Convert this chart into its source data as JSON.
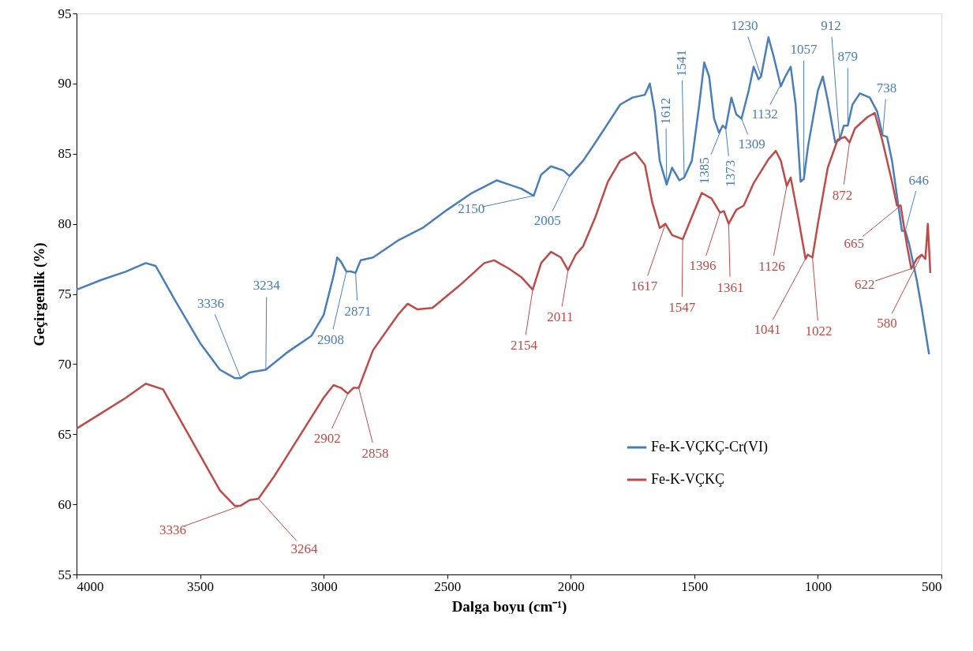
{
  "chart_data": {
    "type": "line",
    "xlabel": "Dalga boyu (cm⁻¹)",
    "ylabel": "Geçirgenlik (%)",
    "xlim": [
      4000,
      500
    ],
    "xticks": [
      4000,
      3500,
      3000,
      2500,
      2000,
      1500,
      1000,
      500
    ],
    "ylim": [
      55,
      95
    ],
    "yticks": [
      55,
      60,
      65,
      70,
      75,
      80,
      85,
      90,
      95
    ],
    "grid": false,
    "legend": "bottom right",
    "marker": "none",
    "line_style": "solid",
    "series": [
      {
        "name": "Fe-K-VÇKÇ-Cr(VI)",
        "color": "#4a7ebb",
        "x": [
          4000,
          3900,
          3800,
          3720,
          3680,
          3600,
          3500,
          3420,
          3360,
          3336,
          3300,
          3234,
          3150,
          3050,
          3000,
          2960,
          2945,
          2930,
          2908,
          2890,
          2871,
          2850,
          2800,
          2700,
          2600,
          2500,
          2400,
          2300,
          2250,
          2200,
          2150,
          2120,
          2080,
          2030,
          2005,
          1950,
          1900,
          1800,
          1750,
          1700,
          1680,
          1660,
          1640,
          1612,
          1590,
          1560,
          1541,
          1510,
          1480,
          1460,
          1440,
          1420,
          1400,
          1385,
          1373,
          1350,
          1330,
          1309,
          1280,
          1260,
          1240,
          1230,
          1200,
          1180,
          1150,
          1132,
          1110,
          1090,
          1070,
          1057,
          1040,
          1000,
          980,
          960,
          930,
          912,
          895,
          879,
          860,
          830,
          790,
          760,
          738,
          720,
          700,
          680,
          660,
          646,
          630,
          600,
          580,
          550
        ],
        "values": [
          75.3,
          76.0,
          76.6,
          77.2,
          77.0,
          74.5,
          71.5,
          69.6,
          69.0,
          69.0,
          69.4,
          69.6,
          70.8,
          72.0,
          73.5,
          76.3,
          77.6,
          77.3,
          76.6,
          76.6,
          76.5,
          77.4,
          77.6,
          78.8,
          79.7,
          81.0,
          82.2,
          83.1,
          82.8,
          82.5,
          82.0,
          83.5,
          84.1,
          83.8,
          83.4,
          84.5,
          85.8,
          88.5,
          89.0,
          89.2,
          90.0,
          88.0,
          84.5,
          82.8,
          84.0,
          83.1,
          83.3,
          84.5,
          88.5,
          91.5,
          90.5,
          87.5,
          86.5,
          87.0,
          86.8,
          89.0,
          87.8,
          87.5,
          89.5,
          91.2,
          90.3,
          90.5,
          93.3,
          92.0,
          89.8,
          90.5,
          91.2,
          88.5,
          83.0,
          83.2,
          85.5,
          89.5,
          90.5,
          88.8,
          85.8,
          86.0,
          87.0,
          87.0,
          88.5,
          89.3,
          89.0,
          88.0,
          86.3,
          86.2,
          84.5,
          82.0,
          79.5,
          79.5,
          78.5,
          76.0,
          74.0,
          70.7
        ]
      },
      {
        "name": "Fe-K-VÇKÇ",
        "color": "#be4b48",
        "x": [
          4000,
          3900,
          3800,
          3720,
          3650,
          3580,
          3500,
          3420,
          3360,
          3336,
          3300,
          3264,
          3200,
          3100,
          3000,
          2960,
          2930,
          2902,
          2880,
          2858,
          2800,
          2700,
          2660,
          2620,
          2560,
          2450,
          2350,
          2310,
          2250,
          2200,
          2154,
          2120,
          2080,
          2040,
          2011,
          1980,
          1950,
          1900,
          1850,
          1800,
          1740,
          1700,
          1670,
          1640,
          1617,
          1590,
          1547,
          1510,
          1470,
          1430,
          1396,
          1380,
          1361,
          1330,
          1300,
          1260,
          1200,
          1170,
          1150,
          1126,
          1110,
          1080,
          1050,
          1041,
          1022,
          1000,
          960,
          920,
          890,
          872,
          850,
          800,
          770,
          740,
          700,
          680,
          665,
          640,
          622,
          600,
          580,
          565,
          555,
          545
        ],
        "values": [
          65.4,
          66.5,
          67.6,
          68.6,
          68.2,
          66.0,
          63.5,
          61.0,
          59.9,
          59.9,
          60.3,
          60.4,
          62.0,
          64.8,
          67.6,
          68.5,
          68.3,
          67.9,
          68.3,
          68.3,
          71.0,
          73.5,
          74.3,
          73.9,
          74.0,
          75.6,
          77.2,
          77.4,
          76.8,
          76.2,
          75.3,
          77.2,
          78.0,
          77.6,
          76.7,
          77.8,
          78.4,
          80.5,
          83.0,
          84.5,
          85.1,
          84.2,
          81.5,
          79.7,
          80.0,
          79.2,
          78.9,
          80.5,
          82.2,
          81.8,
          80.8,
          80.9,
          80.0,
          81.0,
          81.3,
          82.9,
          84.6,
          85.2,
          84.5,
          82.7,
          83.3,
          80.5,
          77.5,
          77.8,
          77.6,
          80.0,
          84.0,
          86.0,
          86.2,
          85.8,
          86.8,
          87.6,
          87.9,
          86.0,
          83.0,
          81.3,
          81.3,
          78.5,
          76.8,
          77.5,
          77.8,
          77.5,
          80.0,
          76.5
        ]
      }
    ],
    "annotations": [
      {
        "text": "3336",
        "x": 3336,
        "y": 69.0
      },
      {
        "text": "3234",
        "x": 3234,
        "y": 69.6
      },
      {
        "text": "2908",
        "x": 2908,
        "y": 76.6
      },
      {
        "text": "2871",
        "x": 2871,
        "y": 76.5
      },
      {
        "text": "2150",
        "x": 2150,
        "y": 82.0
      },
      {
        "text": "2005",
        "x": 2005,
        "y": 83.4
      },
      {
        "text": "1612",
        "x": 1612,
        "y": 82.8
      },
      {
        "text": "1541",
        "x": 1541,
        "y": 83.3
      },
      {
        "text": "1385",
        "x": 1385,
        "y": 87.0
      },
      {
        "text": "1373",
        "x": 1373,
        "y": 86.8
      },
      {
        "text": "1309",
        "x": 1309,
        "y": 87.5
      },
      {
        "text": "1230",
        "x": 1230,
        "y": 90.5
      },
      {
        "text": "1132",
        "x": 1132,
        "y": 90.5
      },
      {
        "text": "1057",
        "x": 1057,
        "y": 83.2
      },
      {
        "text": "912",
        "x": 912,
        "y": 86.0
      },
      {
        "text": "879",
        "x": 879,
        "y": 87.0
      },
      {
        "text": "738",
        "x": 738,
        "y": 86.3
      },
      {
        "text": "646",
        "x": 646,
        "y": 79.5
      },
      {
        "text": "3336",
        "x": 3336,
        "y": 59.9
      },
      {
        "text": "3264",
        "x": 3264,
        "y": 60.4
      },
      {
        "text": "2902",
        "x": 2902,
        "y": 67.9
      },
      {
        "text": "2858",
        "x": 2858,
        "y": 68.3
      },
      {
        "text": "2154",
        "x": 2154,
        "y": 75.3
      },
      {
        "text": "2011",
        "x": 2011,
        "y": 76.7
      },
      {
        "text": "1617",
        "x": 1617,
        "y": 80.0
      },
      {
        "text": "1547",
        "x": 1547,
        "y": 78.9
      },
      {
        "text": "1396",
        "x": 1396,
        "y": 80.8
      },
      {
        "text": "1361",
        "x": 1361,
        "y": 80.0
      },
      {
        "text": "1126",
        "x": 1126,
        "y": 82.7
      },
      {
        "text": "1041",
        "x": 1041,
        "y": 77.8
      },
      {
        "text": "1022",
        "x": 1022,
        "y": 77.6
      },
      {
        "text": "872",
        "x": 872,
        "y": 85.8
      },
      {
        "text": "665",
        "x": 665,
        "y": 81.3
      },
      {
        "text": "622",
        "x": 622,
        "y": 76.8
      },
      {
        "text": "580",
        "x": 580,
        "y": 77.8
      }
    ]
  }
}
